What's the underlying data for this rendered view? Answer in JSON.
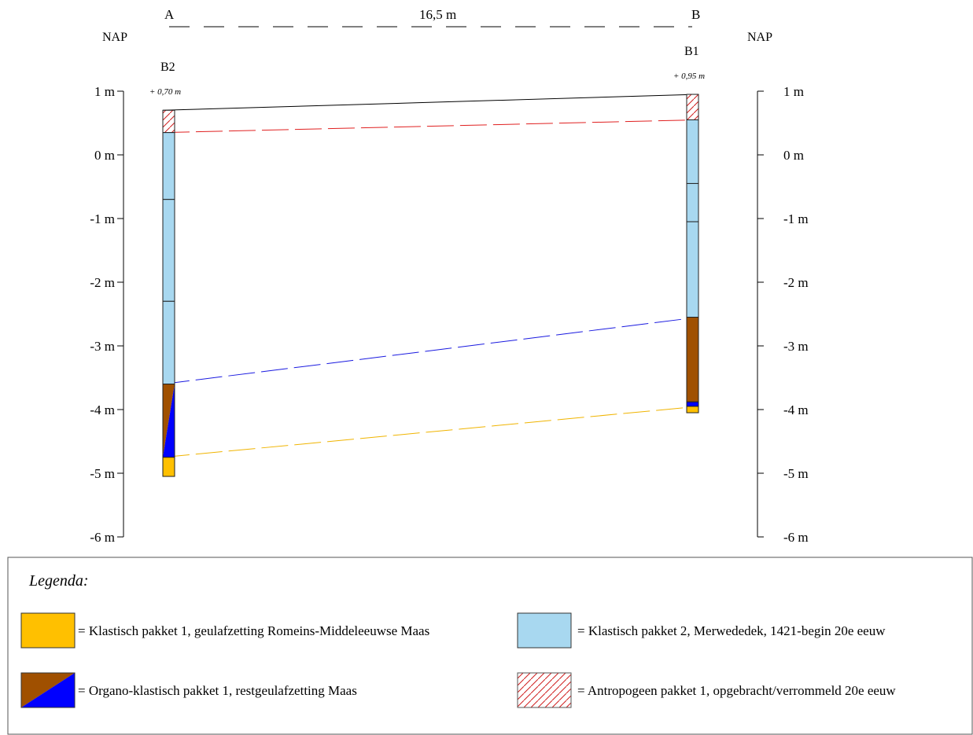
{
  "profile": {
    "point_a": "A",
    "point_b": "B",
    "distance": "16,5 m",
    "left_datum": "NAP",
    "right_datum": "NAP"
  },
  "boreholes": [
    {
      "id": "B2",
      "elevation_label": "+ 0,70 m",
      "surface": 0.7
    },
    {
      "id": "B1",
      "elevation_label": "+ 0,95 m",
      "surface": 0.95
    }
  ],
  "axis": {
    "min": -6,
    "max": 1,
    "ticks": [
      "1 m",
      "0 m",
      "-1 m",
      "-2 m",
      "-3 m",
      "-4 m",
      "-5 m",
      "-6 m"
    ]
  },
  "layers": {
    "B2": [
      {
        "top": 0.7,
        "bottom": 0.35,
        "type": "antropogeen"
      },
      {
        "top": 0.35,
        "bottom": -0.7,
        "type": "klastisch2"
      },
      {
        "top": -0.7,
        "bottom": -2.3,
        "type": "klastisch2"
      },
      {
        "top": -2.3,
        "bottom": -3.6,
        "type": "klastisch2"
      },
      {
        "top": -3.6,
        "bottom": -4.75,
        "type": "organo"
      },
      {
        "top": -4.75,
        "bottom": -5.05,
        "type": "klastisch1"
      }
    ],
    "B1": [
      {
        "top": 0.95,
        "bottom": 0.55,
        "type": "antropogeen"
      },
      {
        "top": 0.55,
        "bottom": -0.45,
        "type": "klastisch2"
      },
      {
        "top": -0.45,
        "bottom": -1.05,
        "type": "klastisch2"
      },
      {
        "top": -1.05,
        "bottom": -2.55,
        "type": "klastisch2"
      },
      {
        "top": -2.55,
        "bottom": -3.88,
        "type": "organo_brown"
      },
      {
        "top": -3.88,
        "bottom": -3.95,
        "type": "organo_blue"
      },
      {
        "top": -3.95,
        "bottom": -4.05,
        "type": "klastisch1"
      }
    ]
  },
  "correlations": [
    {
      "from": 0.7,
      "to": 0.95,
      "color": "#000000",
      "style": "solid"
    },
    {
      "from": 0.35,
      "to": 0.55,
      "color": "#e02020",
      "style": "dashed"
    },
    {
      "from": -3.6,
      "to": -2.55,
      "color": "#1a1ae0",
      "style": "dashed"
    },
    {
      "from": -4.75,
      "to": -3.95,
      "color": "#f0b400",
      "style": "dashed"
    }
  ],
  "colors": {
    "klastisch1": "#ffc000",
    "klastisch2": "#a8d8f0",
    "organo_brown": "#a05000",
    "organo_blue": "#0000ff",
    "antropogeen_hatch": "#d02020"
  },
  "legend": {
    "title": "Legenda:",
    "items": [
      {
        "swatch": "klastisch1",
        "label": "= Klastisch pakket 1, geulafzetting Romeins-Middeleeuwse Maas"
      },
      {
        "swatch": "klastisch2",
        "label": "= Klastisch pakket 2, Merwededek, 1421-begin 20e eeuw"
      },
      {
        "swatch": "organo",
        "label": "= Organo-klastisch pakket 1, restgeulafzetting Maas"
      },
      {
        "swatch": "antropogeen",
        "label": "= Antropogeen pakket 1,  opgebracht/verrommeld 20e eeuw"
      }
    ]
  }
}
